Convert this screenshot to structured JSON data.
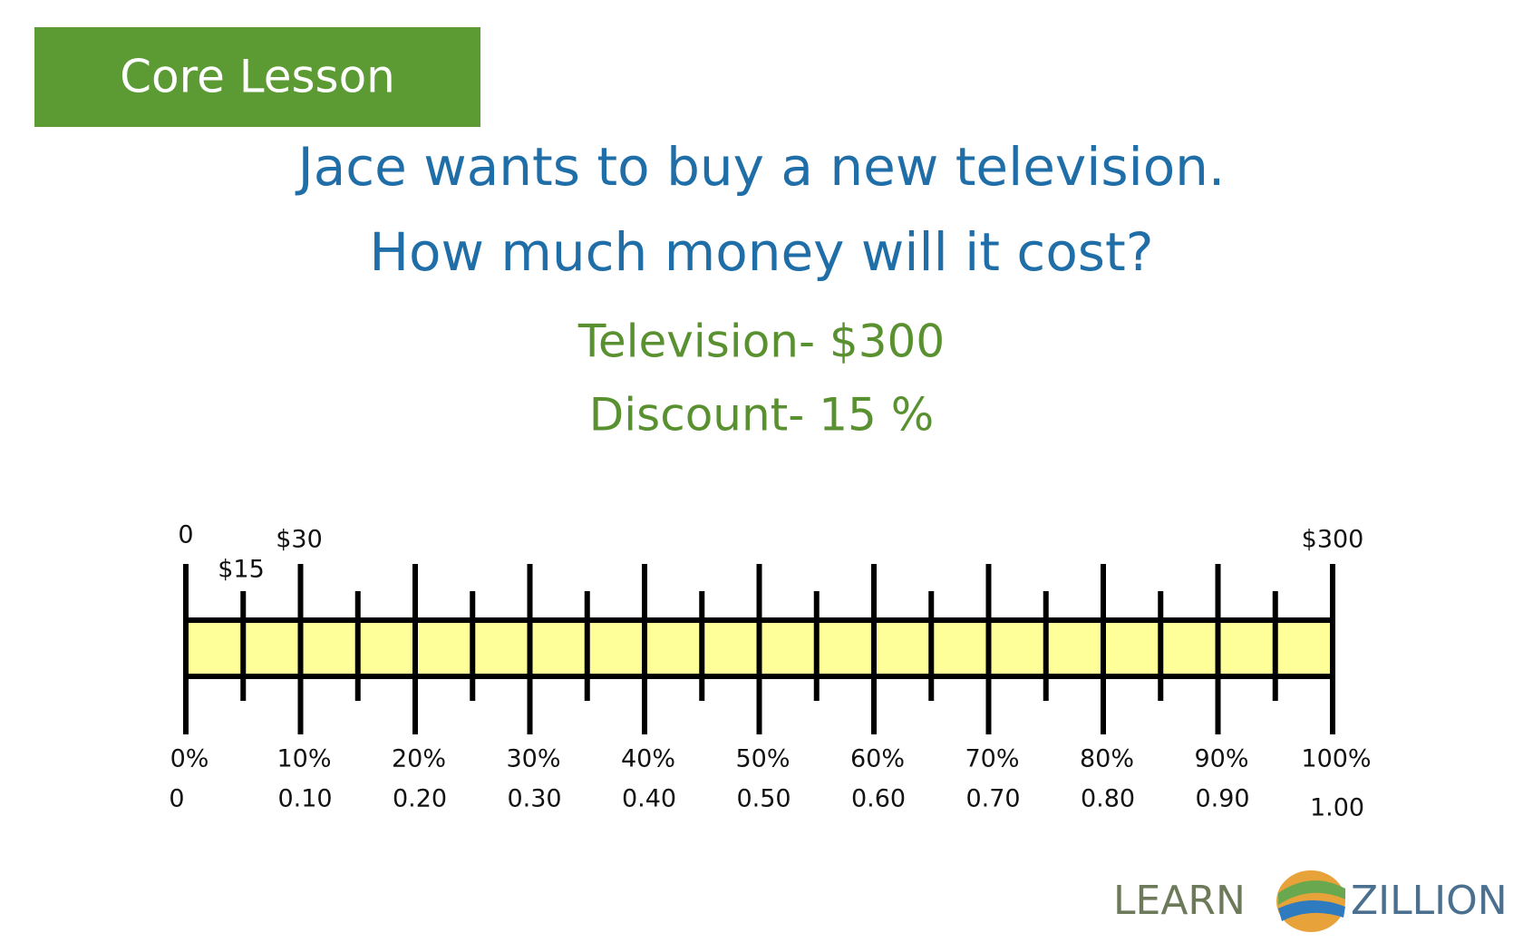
{
  "badge": "Core Lesson",
  "question": [
    "Jace wants to buy a new television.",
    "How much money will it cost?"
  ],
  "facts": [
    "Television- $300",
    "Discount-  15 %"
  ],
  "number_line": {
    "top_labels": [
      "0",
      "$15",
      "$30",
      "$300"
    ],
    "percent_labels": [
      "0%",
      "10%",
      "20%",
      "30%",
      "40%",
      "50%",
      "60%",
      "70%",
      "80%",
      "90%",
      "100%"
    ],
    "decimal_labels": [
      "0",
      "0.10",
      "0.20",
      "0.30",
      "0.40",
      "0.50",
      "0.60",
      "0.70",
      "0.80",
      "0.90",
      "1.00"
    ]
  },
  "logo": {
    "left": "LEARN",
    "right": "ZILLION"
  }
}
